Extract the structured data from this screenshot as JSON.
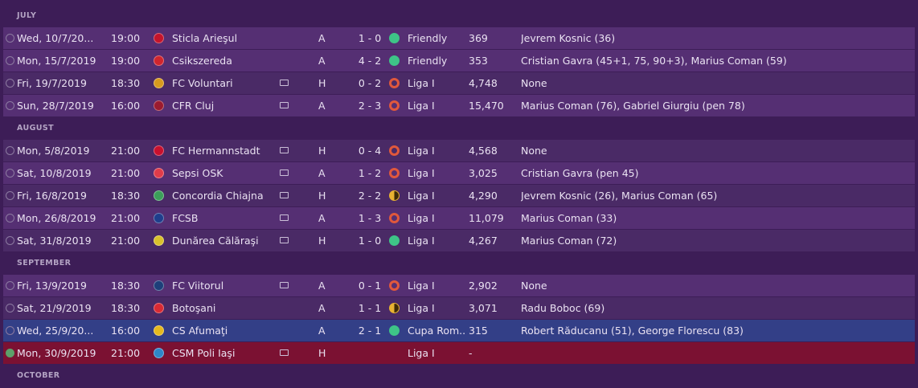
{
  "sections": [
    {
      "label": "JULY",
      "matches": [
        {
          "date": "Wed, 10/7/20...",
          "time": "19:00",
          "opponent": "Sticla Arieşul",
          "badge_color": "#c4142b",
          "tv": false,
          "venue": "A",
          "score": "1 - 0",
          "result": "win",
          "competition": "Friendly",
          "attendance": "369",
          "scorers": "Jevrem Kosnic (36)",
          "style": "alt"
        },
        {
          "date": "Mon, 15/7/2019",
          "time": "19:00",
          "opponent": "Csikszereda",
          "badge_color": "#d0252e",
          "tv": false,
          "venue": "A",
          "score": "4 - 2",
          "result": "win",
          "competition": "Friendly",
          "attendance": "353",
          "scorers": "Cristian Gavra (45+1, 75, 90+3), Marius Coman (59)",
          "style": "hl2"
        },
        {
          "date": "Fri, 19/7/2019",
          "time": "18:30",
          "opponent": "FC Voluntari",
          "badge_color": "#d89a1e",
          "tv": true,
          "venue": "H",
          "score": "0 - 2",
          "result": "loss",
          "competition": "Liga I",
          "attendance": "4,748",
          "scorers": "None",
          "style": ""
        },
        {
          "date": "Sun, 28/7/2019",
          "time": "16:00",
          "opponent": "CFR Cluj",
          "badge_color": "#9b1b2f",
          "tv": true,
          "venue": "A",
          "score": "2 - 3",
          "result": "loss",
          "competition": "Liga I",
          "attendance": "15,470",
          "scorers": "Marius Coman (76), Gabriel Giurgiu (pen 78)",
          "style": "alt"
        }
      ]
    },
    {
      "label": "AUGUST",
      "matches": [
        {
          "date": "Mon, 5/8/2019",
          "time": "21:00",
          "opponent": "FC Hermannstadt",
          "badge_color": "#c8102e",
          "tv": true,
          "venue": "H",
          "score": "0 - 4",
          "result": "loss",
          "competition": "Liga I",
          "attendance": "4,568",
          "scorers": "None",
          "style": ""
        },
        {
          "date": "Sat, 10/8/2019",
          "time": "21:00",
          "opponent": "Sepsi OSK",
          "badge_color": "#e03c4a",
          "tv": true,
          "venue": "A",
          "score": "1 - 2",
          "result": "loss",
          "competition": "Liga I",
          "attendance": "3,025",
          "scorers": "Cristian Gavra (pen 45)",
          "style": "alt"
        },
        {
          "date": "Fri, 16/8/2019",
          "time": "18:30",
          "opponent": "Concordia Chiajna",
          "badge_color": "#3c9e5a",
          "tv": true,
          "venue": "H",
          "score": "2 - 2",
          "result": "draw",
          "competition": "Liga I",
          "attendance": "4,290",
          "scorers": "Jevrem Kosnic (26), Marius Coman (65)",
          "style": ""
        },
        {
          "date": "Mon, 26/8/2019",
          "time": "21:00",
          "opponent": "FCSB",
          "badge_color": "#1f3e8c",
          "tv": true,
          "venue": "A",
          "score": "1 - 3",
          "result": "loss",
          "competition": "Liga I",
          "attendance": "11,079",
          "scorers": "Marius Coman (33)",
          "style": "alt"
        },
        {
          "date": "Sat, 31/8/2019",
          "time": "21:00",
          "opponent": "Dunărea Călăraşi",
          "badge_color": "#d9c12c",
          "tv": true,
          "venue": "H",
          "score": "1 - 0",
          "result": "win",
          "competition": "Liga I",
          "attendance": "4,267",
          "scorers": "Marius Coman (72)",
          "style": ""
        }
      ]
    },
    {
      "label": "SEPTEMBER",
      "matches": [
        {
          "date": "Fri, 13/9/2019",
          "time": "18:30",
          "opponent": "FC Viitorul",
          "badge_color": "#1d3f7a",
          "tv": true,
          "venue": "A",
          "score": "0 - 1",
          "result": "loss",
          "competition": "Liga I",
          "attendance": "2,902",
          "scorers": "None",
          "style": "alt"
        },
        {
          "date": "Sat, 21/9/2019",
          "time": "18:30",
          "opponent": "Botoşani",
          "badge_color": "#d82a33",
          "tv": false,
          "venue": "A",
          "score": "1 - 1",
          "result": "draw",
          "competition": "Liga I",
          "attendance": "3,071",
          "scorers": "Radu Boboc (69)",
          "style": ""
        },
        {
          "date": "Wed, 25/9/20...",
          "time": "16:00",
          "opponent": "CS Afumaţi",
          "badge_color": "#e5b91e",
          "tv": false,
          "venue": "A",
          "score": "2 - 1",
          "result": "win",
          "competition": "Cupa Rom...",
          "attendance": "315",
          "scorers": "Robert Răducanu (51), George Florescu (83)",
          "style": "hl"
        },
        {
          "date": "Mon, 30/9/2019",
          "time": "21:00",
          "opponent": "CSM Poli Iaşi",
          "badge_color": "#2e86c8",
          "tv": true,
          "venue": "H",
          "score": "",
          "result": "",
          "competition": "Liga I",
          "attendance": "-",
          "scorers": "",
          "style": "red"
        }
      ]
    },
    {
      "label": "OCTOBER",
      "matches": []
    }
  ]
}
